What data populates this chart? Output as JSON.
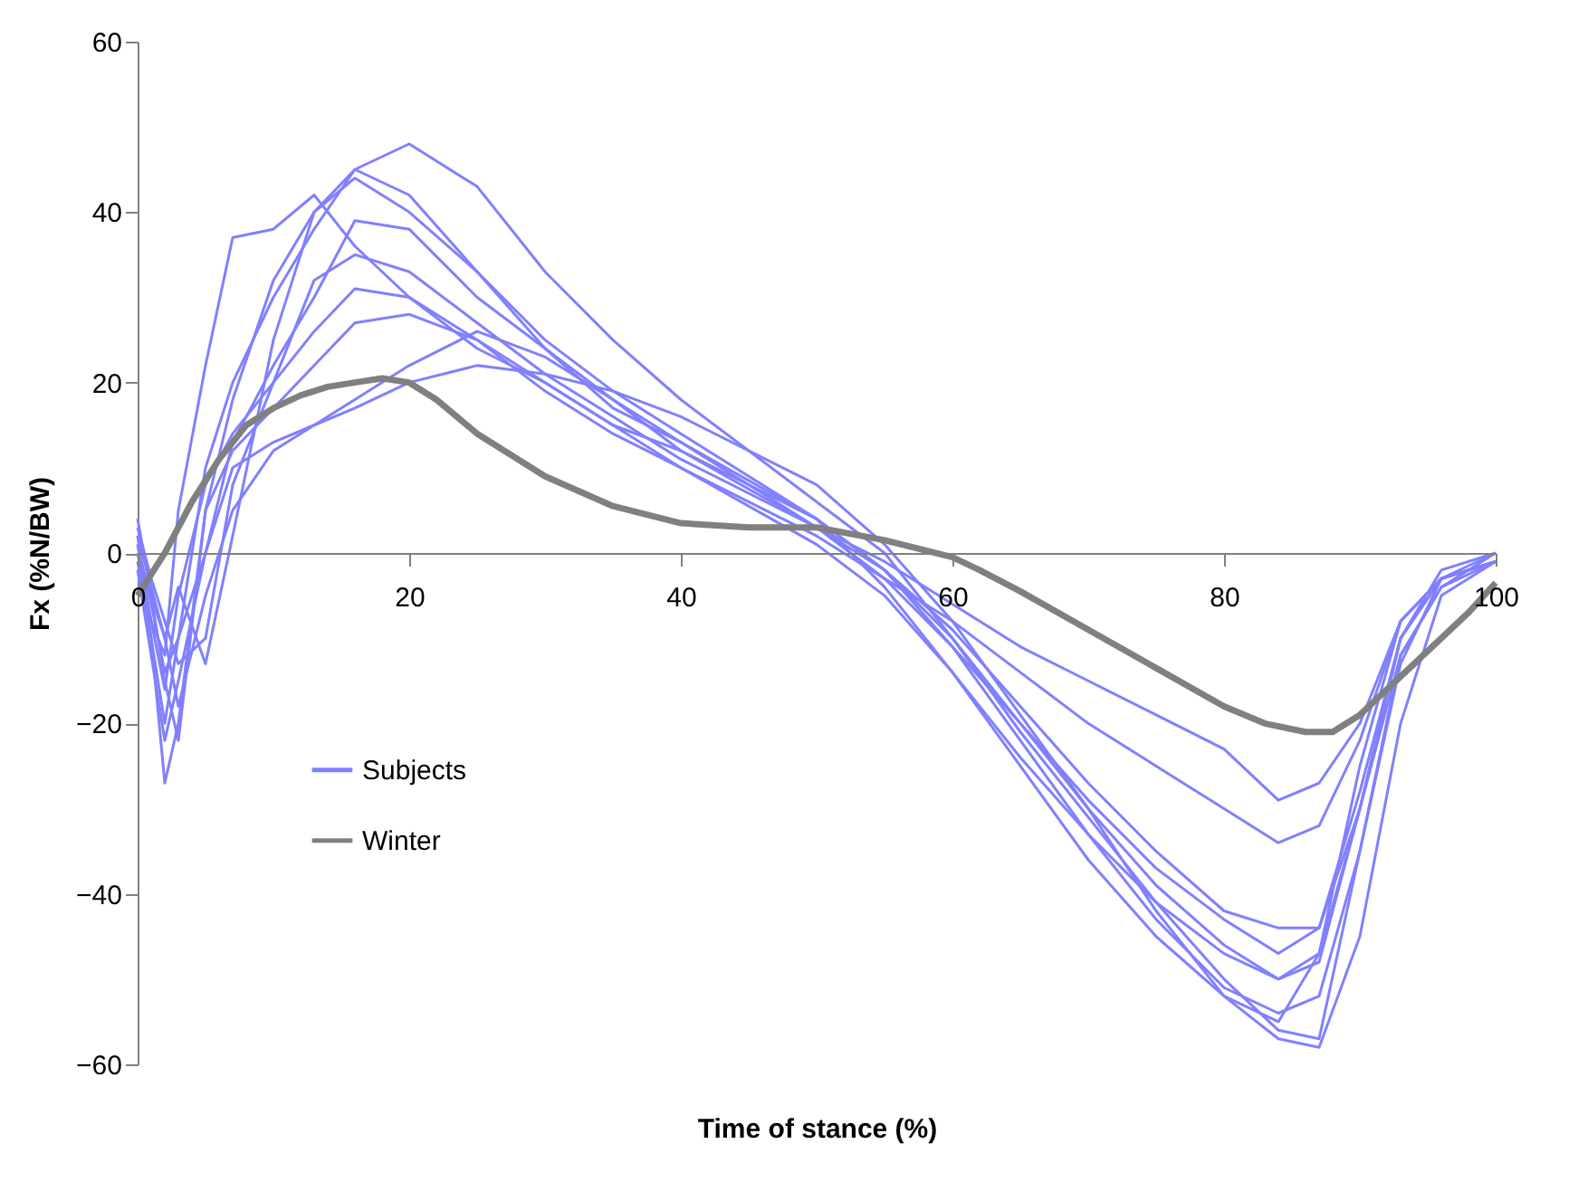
{
  "chart_data": {
    "type": "line",
    "xlabel": "Time of stance (%)",
    "ylabel": "Fx (%N/BW)",
    "x": [
      0,
      1,
      2,
      3,
      5,
      7,
      10,
      13,
      16,
      20,
      25,
      30,
      35,
      40,
      50,
      55,
      60,
      65,
      70,
      75,
      80,
      84,
      87,
      90,
      93,
      96,
      100
    ],
    "xlim": [
      0,
      100
    ],
    "xticks": [
      0,
      20,
      40,
      60,
      80,
      100
    ],
    "ylim": [
      -60,
      60
    ],
    "yticks": [
      -60,
      -40,
      -20,
      0,
      20,
      40,
      60
    ],
    "grid": false,
    "legend": "bottom left",
    "line_style": "solid",
    "marker": "none",
    "series": [
      {
        "name": "Subjects",
        "color": "#8080ff",
        "values": [
          2,
          -10,
          -20,
          -10,
          10,
          20,
          30,
          38,
          45,
          48,
          43,
          33,
          25,
          18,
          6,
          0,
          -10,
          -21,
          -31,
          -41,
          -50,
          -56,
          -57,
          -35,
          -12,
          -4,
          0
        ]
      },
      {
        "color": "#8080ff",
        "values": [
          4,
          -5,
          -15,
          -22,
          5,
          18,
          32,
          40,
          45,
          42,
          33,
          25,
          19,
          14,
          4,
          -4,
          -14,
          -25,
          -36,
          -45,
          -52,
          -55,
          -47,
          -25,
          -8,
          -3,
          -1
        ]
      },
      {
        "color": "#8080ff",
        "values": [
          1,
          -8,
          -12,
          5,
          22,
          37,
          38,
          42,
          36,
          30,
          24,
          20,
          15,
          12,
          4,
          -2,
          -10,
          -20,
          -30,
          -39,
          -46,
          -50,
          -48,
          -30,
          -10,
          -2,
          0
        ]
      },
      {
        "color": "#8080ff",
        "values": [
          -2,
          -12,
          -22,
          -15,
          0,
          13,
          22,
          30,
          39,
          38,
          30,
          24,
          18,
          13,
          3,
          -3,
          -11,
          -20,
          -29,
          -37,
          -43,
          -47,
          -44,
          -28,
          -10,
          -3,
          -1
        ]
      },
      {
        "color": "#8080ff",
        "values": [
          3,
          -3,
          -8,
          -13,
          -10,
          8,
          20,
          32,
          35,
          33,
          27,
          21,
          16,
          11,
          3,
          -2,
          -9,
          -18,
          -27,
          -35,
          -42,
          -44,
          -44,
          -30,
          -12,
          -4,
          -1
        ]
      },
      {
        "color": "#8080ff",
        "values": [
          0,
          -8,
          -16,
          -5,
          8,
          14,
          20,
          26,
          31,
          30,
          25,
          20,
          15,
          10,
          2,
          -3,
          -8,
          -14,
          -20,
          -25,
          -30,
          -34,
          -32,
          -22,
          -8,
          -3,
          -1
        ]
      },
      {
        "color": "#8080ff",
        "values": [
          1,
          -6,
          -14,
          -10,
          0,
          10,
          13,
          15,
          18,
          22,
          26,
          23,
          18,
          12,
          3,
          -1,
          -6,
          -11,
          -15,
          -19,
          -23,
          -29,
          -27,
          -20,
          -8,
          -3,
          -1
        ]
      },
      {
        "color": "#8080ff",
        "values": [
          2,
          -4,
          -10,
          -18,
          -5,
          5,
          12,
          15,
          17,
          20,
          22,
          21,
          19,
          16,
          8,
          1,
          -8,
          -19,
          -30,
          -42,
          -52,
          -57,
          -58,
          -45,
          -20,
          -5,
          -1
        ]
      },
      {
        "color": "#8080ff",
        "values": [
          0,
          -5,
          -10,
          -4,
          -13,
          2,
          25,
          40,
          44,
          40,
          33,
          24,
          17,
          13,
          4,
          -2,
          -11,
          -22,
          -33,
          -43,
          -51,
          -54,
          -52,
          -35,
          -13,
          -3,
          0
        ]
      },
      {
        "color": "#8080ff",
        "values": [
          -1,
          -10,
          -27,
          -20,
          5,
          12,
          17,
          22,
          27,
          28,
          25,
          19,
          14,
          10,
          1,
          -5,
          -14,
          -24,
          -33,
          -41,
          -47,
          -50,
          -47,
          -30,
          -10,
          -3,
          -1
        ]
      },
      {
        "name": "Winter",
        "color": "#808080",
        "x": [
          0,
          2,
          4,
          6,
          8,
          10,
          12,
          14,
          16,
          18,
          20,
          22,
          25,
          30,
          35,
          40,
          45,
          50,
          55,
          60,
          62,
          65,
          70,
          75,
          80,
          83,
          86,
          88,
          90,
          92,
          94,
          96,
          98,
          100
        ],
        "values": [
          -5,
          0,
          6,
          11,
          15,
          17,
          18.5,
          19.5,
          20,
          20.5,
          20,
          18,
          14,
          9,
          5.5,
          3.5,
          3,
          3,
          1.5,
          -0.5,
          -2,
          -4.5,
          -9,
          -13.5,
          -18,
          -20,
          -21,
          -21,
          -19,
          -16,
          -13,
          -10,
          -7,
          -3.5
        ]
      }
    ]
  }
}
